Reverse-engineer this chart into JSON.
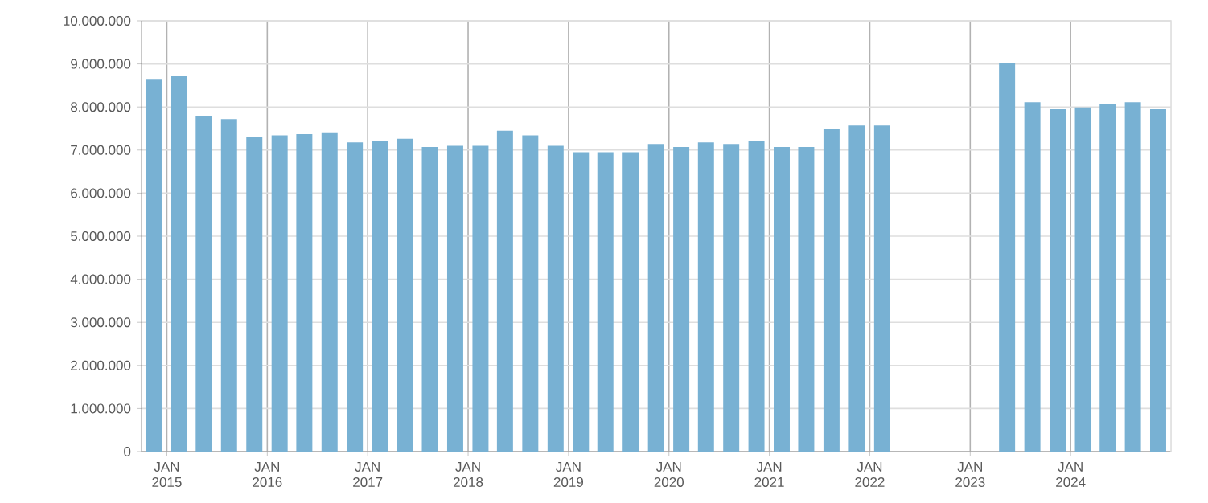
{
  "chart_data": {
    "type": "bar",
    "color": "#78b1d3",
    "x": [
      "2014-11-15",
      "2015-02-15",
      "2015-05-15",
      "2015-08-15",
      "2015-11-15",
      "2016-02-15",
      "2016-05-15",
      "2016-08-15",
      "2016-11-15",
      "2017-02-15",
      "2017-05-15",
      "2017-08-15",
      "2017-11-15",
      "2018-02-15",
      "2018-05-15",
      "2018-08-15",
      "2018-11-15",
      "2019-02-15",
      "2019-05-15",
      "2019-08-15",
      "2019-11-15",
      "2020-02-15",
      "2020-05-15",
      "2020-08-15",
      "2020-11-15",
      "2021-02-15",
      "2021-05-15",
      "2021-08-15",
      "2021-11-15",
      "2022-02-15",
      "2023-05-15",
      "2023-08-15",
      "2023-11-15",
      "2024-02-15",
      "2024-05-15",
      "2024-08-15",
      "2024-11-15"
    ],
    "values": [
      8650000,
      8730000,
      7800000,
      7720000,
      7300000,
      7340000,
      7370000,
      7410000,
      7180000,
      7220000,
      7260000,
      7070000,
      7100000,
      7100000,
      7450000,
      7340000,
      7100000,
      6950000,
      6950000,
      6950000,
      7140000,
      7070000,
      7180000,
      7140000,
      7220000,
      7070000,
      7070000,
      7490000,
      7570000,
      7570000,
      9030000,
      8110000,
      7950000,
      7990000,
      8070000,
      8110000,
      7950000
    ],
    "xlim": [
      "2014-10-01",
      "2025-01-01"
    ],
    "xticks": [
      {
        "value": "2015-01-01",
        "label": "JAN 2015"
      },
      {
        "value": "2016-01-01",
        "label": "JAN 2016"
      },
      {
        "value": "2017-01-01",
        "label": "JAN 2017"
      },
      {
        "value": "2018-01-01",
        "label": "JAN 2018"
      },
      {
        "value": "2019-01-01",
        "label": "JAN 2019"
      },
      {
        "value": "2020-01-01",
        "label": "JAN 2020"
      },
      {
        "value": "2021-01-01",
        "label": "JAN 2021"
      },
      {
        "value": "2022-01-01",
        "label": "JAN 2022"
      },
      {
        "value": "2023-01-01",
        "label": "JAN 2023"
      },
      {
        "value": "2024-01-01",
        "label": "JAN 2024"
      }
    ],
    "ylim": [
      0,
      10000000
    ],
    "yticks": [
      {
        "value": 0,
        "label": "0"
      },
      {
        "value": 1000000,
        "label": "1.000.000"
      },
      {
        "value": 2000000,
        "label": "2.000.000"
      },
      {
        "value": 3000000,
        "label": "3.000.000"
      },
      {
        "value": 4000000,
        "label": "4.000.000"
      },
      {
        "value": 5000000,
        "label": "5.000.000"
      },
      {
        "value": 6000000,
        "label": "6.000.000"
      },
      {
        "value": 7000000,
        "label": "7.000.000"
      },
      {
        "value": 8000000,
        "label": "8.000.000"
      },
      {
        "value": 9000000,
        "label": "9.000.000"
      },
      {
        "value": 10000000,
        "label": "10.000.000"
      }
    ],
    "grid": true
  }
}
